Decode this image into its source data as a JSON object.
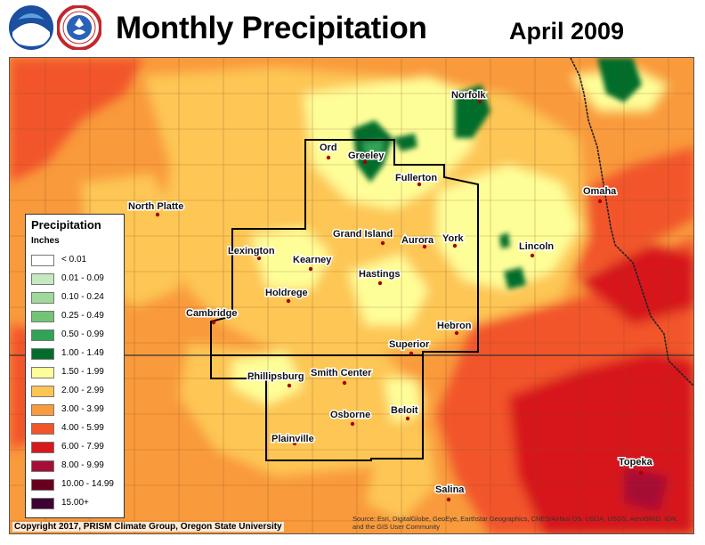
{
  "title": "Monthly Precipitation",
  "period": "April 2009",
  "logos": [
    "noaa-logo",
    "national-weather-service-logo"
  ],
  "legend": {
    "title": "Precipitation",
    "units": "Inches",
    "items": [
      {
        "label": "< 0.01",
        "color": "#ffffff"
      },
      {
        "label": "0.01 - 0.09",
        "color": "#c7e9c0"
      },
      {
        "label": "0.10 - 0.24",
        "color": "#a1d99b"
      },
      {
        "label": "0.25 - 0.49",
        "color": "#74c476"
      },
      {
        "label": "0.50 - 0.99",
        "color": "#31a354"
      },
      {
        "label": "1.00 - 1.49",
        "color": "#006d2c"
      },
      {
        "label": "1.50 - 1.99",
        "color": "#fefe99"
      },
      {
        "label": "2.00 - 2.99",
        "color": "#fdc654"
      },
      {
        "label": "3.00 - 3.99",
        "color": "#f99a3c"
      },
      {
        "label": "4.00 - 5.99",
        "color": "#f2552a"
      },
      {
        "label": "6.00 - 7.99",
        "color": "#d7191c"
      },
      {
        "label": "8.00 - 9.99",
        "color": "#a50f36"
      },
      {
        "label": "10.00 - 14.99",
        "color": "#67001f"
      },
      {
        "label": "15.00+",
        "color": "#3f0035"
      }
    ]
  },
  "cities": {
    "norfolk": "Norfolk",
    "ord": "Ord",
    "greeley": "Greeley",
    "fullerton": "Fullerton",
    "omaha": "Omaha",
    "north_platte": "North Platte",
    "grand_island": "Grand Island",
    "aurora": "Aurora",
    "york": "York",
    "lincoln": "Lincoln",
    "lexington": "Lexington",
    "kearney": "Kearney",
    "hastings": "Hastings",
    "holdrege": "Holdrege",
    "cambridge": "Cambridge",
    "hebron": "Hebron",
    "superior": "Superior",
    "phillipsburg": "Phillipsburg",
    "smith_center": "Smith Center",
    "beloit": "Beloit",
    "osborne": "Osborne",
    "plainville": "Plainville",
    "topeka": "Topeka",
    "salina": "Salina"
  },
  "copyright": "Copyright 2017, PRISM Climate Group, Oregon State University",
  "source": "Source: Esri, DigitalGlobe, GeoEye, Earthstar Geographics, CNES/Airbus DS, USDA, USGS, AeroGRID, IGN, and the GIS User Community"
}
